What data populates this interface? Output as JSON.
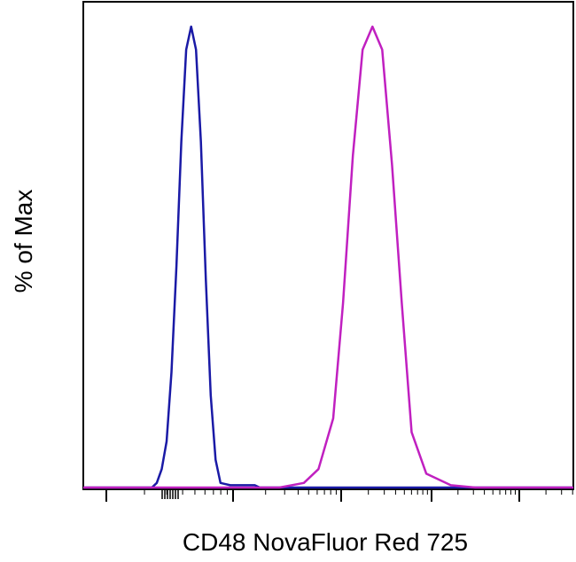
{
  "chart_data": {
    "type": "line",
    "title": "",
    "xlabel": "CD48 NovaFluor Red 725",
    "ylabel": "% of Max",
    "x_scale": "log",
    "xlim": [
      0,
      100
    ],
    "ylim": [
      0,
      100
    ],
    "grid": false,
    "legend": "none",
    "series": [
      {
        "color": "#1a1aa6",
        "x": [
          0,
          14,
          15,
          16,
          17,
          18,
          19,
          20,
          21,
          22,
          23,
          24,
          25,
          26,
          27,
          28,
          30,
          35,
          36,
          40,
          45,
          50,
          55,
          60,
          70,
          80,
          90,
          100
        ],
        "values": [
          0,
          0,
          1,
          4,
          10,
          25,
          48,
          75,
          95,
          100,
          95,
          75,
          45,
          20,
          6,
          1,
          0.5,
          0.5,
          0,
          0,
          0,
          0,
          0,
          0,
          0,
          0,
          0,
          0
        ]
      },
      {
        "color": "#c020c0",
        "x": [
          0,
          10,
          20,
          30,
          40,
          45,
          48,
          51,
          53,
          55,
          57,
          59,
          61,
          63,
          65,
          67,
          70,
          75,
          80,
          90,
          100
        ],
        "values": [
          0,
          0,
          0,
          0,
          0,
          1,
          4,
          15,
          40,
          72,
          95,
          100,
          95,
          70,
          40,
          12,
          3,
          0.5,
          0,
          0,
          0
        ]
      }
    ]
  }
}
